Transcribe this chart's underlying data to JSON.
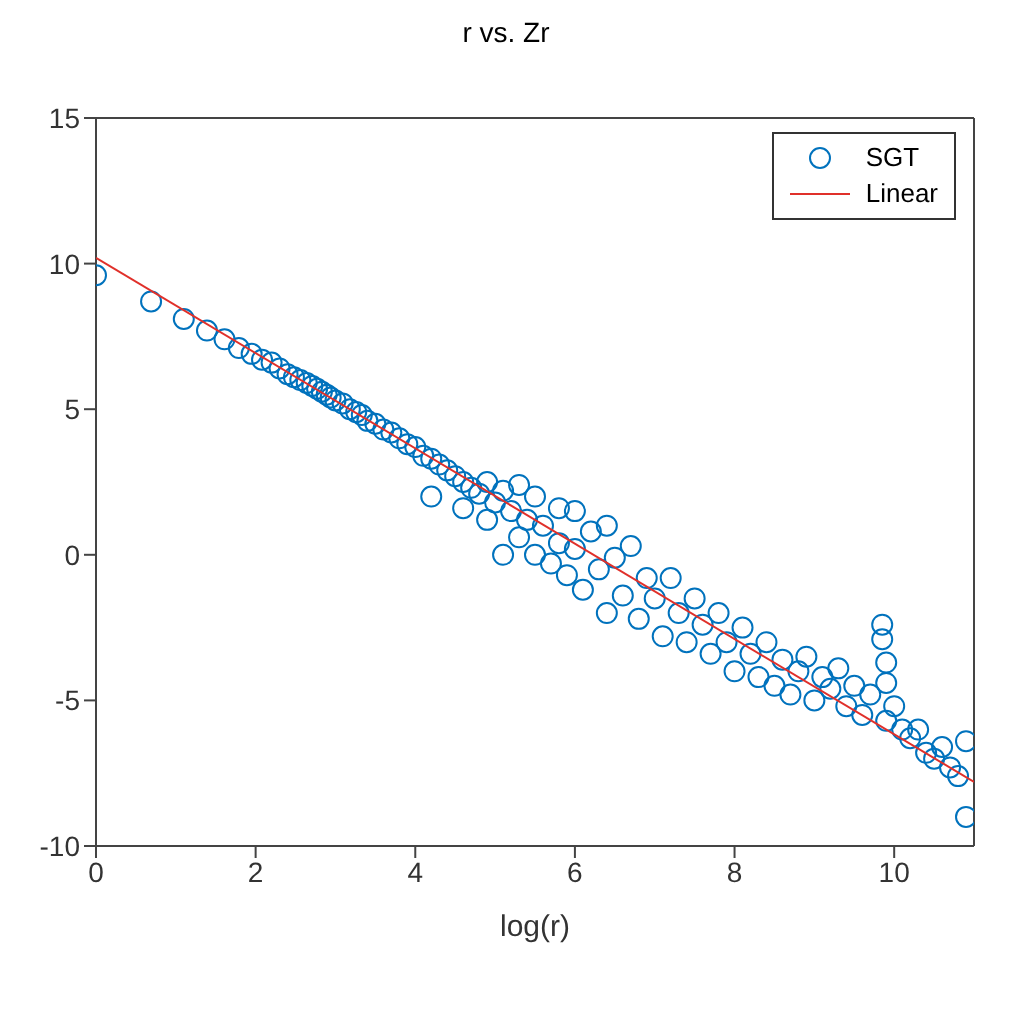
{
  "chart_data": {
    "type": "scatter",
    "title": "r vs. Zr",
    "xlabel": "log(r)",
    "xlim": [
      0,
      11
    ],
    "xticks": [
      0,
      2,
      4,
      6,
      8,
      10
    ],
    "ylim": [
      -10,
      15
    ],
    "yticks": [
      -10,
      -5,
      0,
      5,
      10,
      15
    ],
    "grid": false,
    "legend": "top right",
    "marker": "circle",
    "series": [
      {
        "name": "SGT",
        "color": "#0072bd",
        "x": [
          0,
          0.69,
          1.1,
          1.39,
          1.61,
          1.79,
          1.95,
          2.08,
          2.2,
          2.3,
          2.4,
          2.48,
          2.56,
          2.64,
          2.71,
          2.77,
          2.83,
          2.89,
          2.94,
          3.0,
          3.09,
          3.18,
          3.26,
          3.33,
          3.4,
          3.5,
          3.6,
          3.7,
          3.8,
          3.9,
          4.0,
          4.1,
          4.2,
          4.3,
          4.4,
          4.5,
          4.2,
          4.6,
          4.6,
          4.7,
          4.8,
          4.9,
          4.9,
          5.0,
          5.1,
          5.1,
          5.2,
          5.3,
          5.3,
          5.4,
          5.5,
          5.5,
          5.6,
          5.7,
          5.8,
          5.8,
          5.9,
          6.0,
          6.0,
          6.1,
          6.2,
          6.3,
          6.4,
          6.4,
          6.5,
          6.6,
          6.7,
          6.8,
          6.9,
          7.0,
          7.1,
          7.2,
          7.3,
          7.4,
          7.5,
          7.6,
          7.7,
          7.8,
          7.9,
          8.0,
          8.1,
          8.2,
          8.3,
          8.4,
          8.5,
          8.6,
          8.7,
          8.8,
          8.9,
          9.0,
          9.1,
          9.2,
          9.3,
          9.4,
          9.5,
          9.6,
          9.7,
          9.85,
          9.85,
          9.9,
          9.9,
          9.9,
          10.0,
          10.1,
          10.2,
          10.3,
          10.4,
          10.5,
          10.6,
          10.7,
          10.8,
          10.9,
          10.9
        ],
        "values": [
          9.6,
          8.7,
          8.1,
          7.7,
          7.4,
          7.1,
          6.9,
          6.7,
          6.6,
          6.4,
          6.2,
          6.1,
          6.0,
          5.9,
          5.8,
          5.7,
          5.6,
          5.5,
          5.4,
          5.3,
          5.2,
          5.0,
          4.9,
          4.8,
          4.6,
          4.5,
          4.3,
          4.2,
          4.0,
          3.8,
          3.7,
          3.4,
          3.3,
          3.1,
          2.9,
          2.7,
          2.0,
          2.5,
          1.6,
          2.3,
          2.1,
          2.5,
          1.2,
          1.8,
          2.2,
          0.0,
          1.5,
          2.4,
          0.6,
          1.2,
          0.0,
          2.0,
          1.0,
          -0.3,
          1.6,
          0.4,
          -0.7,
          1.5,
          0.2,
          -1.2,
          0.8,
          -0.5,
          1.0,
          -2.0,
          -0.1,
          -1.4,
          0.3,
          -2.2,
          -0.8,
          -1.5,
          -2.8,
          -0.8,
          -2.0,
          -3.0,
          -1.5,
          -2.4,
          -3.4,
          -2.0,
          -3.0,
          -4.0,
          -2.5,
          -3.4,
          -4.2,
          -3.0,
          -4.5,
          -3.6,
          -4.8,
          -4.0,
          -3.5,
          -5.0,
          -4.2,
          -4.6,
          -3.9,
          -5.2,
          -4.5,
          -5.5,
          -4.8,
          -2.4,
          -2.9,
          -3.7,
          -4.4,
          -5.7,
          -5.2,
          -6.0,
          -6.3,
          -6.0,
          -6.8,
          -7.0,
          -6.6,
          -7.3,
          -7.6,
          -6.4,
          -9.0
        ]
      },
      {
        "name": "Linear",
        "type": "line",
        "color": "#e0302a",
        "marker": "none",
        "x": [
          0,
          11
        ],
        "values": [
          10.2,
          -7.8
        ]
      }
    ]
  }
}
